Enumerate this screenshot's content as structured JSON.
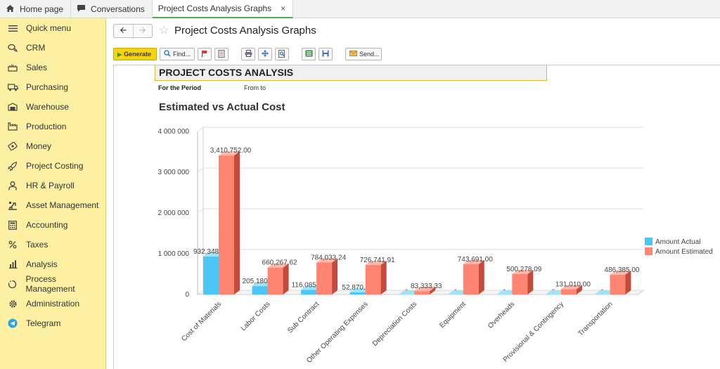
{
  "tabs": [
    {
      "label": "Home page",
      "icon": "home-icon"
    },
    {
      "label": "Conversations",
      "icon": "chat-icon"
    },
    {
      "label": "Project Costs Analysis Graphs",
      "icon": "",
      "close": "×"
    }
  ],
  "sidebar": {
    "items": [
      {
        "label": "Quick menu",
        "icon": "menu-icon"
      },
      {
        "label": "CRM",
        "icon": "crm-icon"
      },
      {
        "label": "Sales",
        "icon": "sales-icon"
      },
      {
        "label": "Purchasing",
        "icon": "truck-icon"
      },
      {
        "label": "Warehouse",
        "icon": "warehouse-icon"
      },
      {
        "label": "Production",
        "icon": "factory-icon"
      },
      {
        "label": "Money",
        "icon": "money-icon"
      },
      {
        "label": "Project Costing",
        "icon": "rocket-icon"
      },
      {
        "label": "HR & Payroll",
        "icon": "person-icon"
      },
      {
        "label": "Asset Management",
        "icon": "asset-icon"
      },
      {
        "label": "Accounting",
        "icon": "calculator-icon"
      },
      {
        "label": "Taxes",
        "icon": "percent-icon"
      },
      {
        "label": "Analysis",
        "icon": "bars-icon"
      },
      {
        "label": "Process Management",
        "icon": "process-icon"
      },
      {
        "label": "Administration",
        "icon": "gear-icon"
      },
      {
        "label": "Telegram",
        "icon": "telegram-icon"
      }
    ]
  },
  "header": {
    "title": "Project Costs Analysis Graphs"
  },
  "toolbar": {
    "generate_label": "Generate",
    "find_label": "Find...",
    "send_label": "Send..."
  },
  "report": {
    "heading": "PROJECT COSTS ANALYSIS",
    "period_label": "For the Period",
    "period_value": "From to"
  },
  "colors": {
    "actual": "#4cc7f5",
    "estimated": "#ff8572",
    "accent": "#f5d50f",
    "sidebar": "#fdf0a2"
  },
  "chart_data": {
    "type": "bar",
    "title": "Estimated vs Actual Cost",
    "xlabel": "",
    "ylabel": "",
    "ylim": [
      0,
      4000000
    ],
    "yticks": [
      0,
      1000000,
      2000000,
      3000000,
      4000000
    ],
    "ytick_labels": [
      "0",
      "1 000 000",
      "2 000 000",
      "3 000 000",
      "4 000 000"
    ],
    "grid": true,
    "legend": "right",
    "categories": [
      "Cost of Materials",
      "Labor Costs",
      "Sub Contract",
      "Other Operating Expenses",
      "Depreciation Costs",
      "Equipment",
      "Overheads",
      "Provisional & Contingency",
      "Transportation"
    ],
    "series": [
      {
        "name": "Amount Actual",
        "values": [
          932348.16,
          205180.0,
          116085.71,
          52870.62,
          0,
          0,
          0,
          0,
          0
        ],
        "labels": [
          "932,348.16",
          "205,180.00",
          "116,085.71",
          "52,870.62",
          "-",
          "-",
          "-",
          "-",
          "-"
        ]
      },
      {
        "name": "Amount Estimated",
        "values": [
          3410752.0,
          660267.62,
          784033.24,
          726741.91,
          83333.33,
          743691.0,
          500278.09,
          131010.0,
          486385.0
        ],
        "labels": [
          "3,410,752.00",
          "660,267.62",
          "784,033.24",
          "726,741.91",
          "83,333.33",
          "743,691.00",
          "500,278.09",
          "131,010.00",
          "486,385.00"
        ]
      }
    ]
  }
}
